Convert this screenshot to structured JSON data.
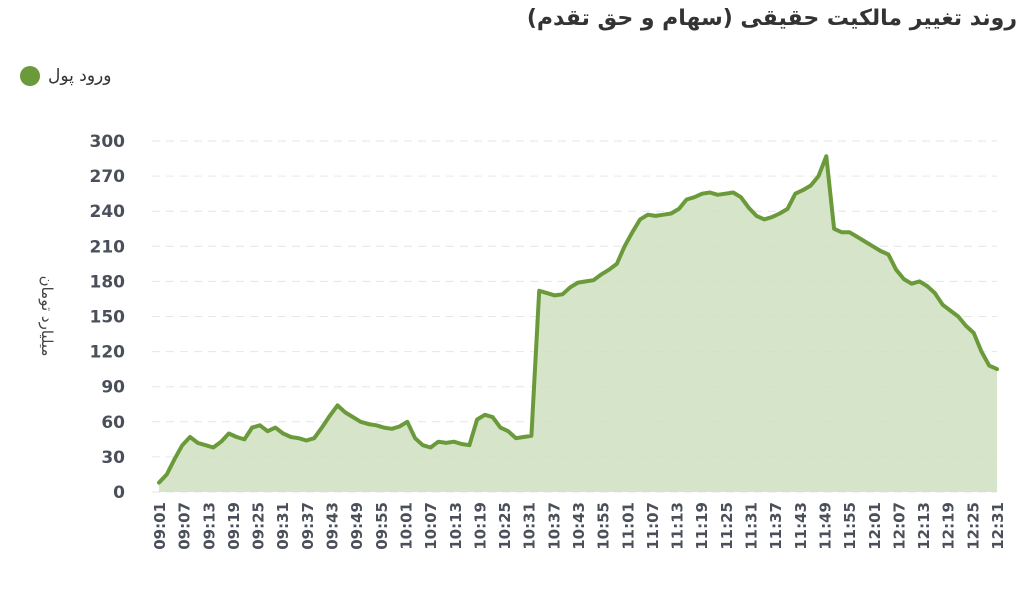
{
  "chart_data": {
    "type": "area",
    "title": "روند تغییر مالکیت حقیقی (سهام و حق تقدم)",
    "ylabel": "میلیارد تومان",
    "xlabel": "",
    "ylim": [
      0,
      300
    ],
    "yticks": [
      0,
      30,
      60,
      90,
      120,
      150,
      180,
      210,
      240,
      270,
      300
    ],
    "grid": true,
    "legend_position": "top-left",
    "colors": {
      "line": "#6a9a3a",
      "fill": "#cfe0bf"
    },
    "x_labels": [
      "09:01",
      "09:07",
      "09:13",
      "09:19",
      "09:25",
      "09:31",
      "09:37",
      "09:43",
      "09:49",
      "09:55",
      "10:01",
      "10:07",
      "10:13",
      "10:19",
      "10:25",
      "10:31",
      "10:37",
      "10:43",
      "10:55",
      "11:01",
      "11:07",
      "11:13",
      "11:19",
      "11:25",
      "11:31",
      "11:37",
      "11:43",
      "11:49",
      "11:55",
      "12:01",
      "12:07",
      "12:13",
      "12:19",
      "12:25",
      "12:31"
    ],
    "series": [
      {
        "name": "ورود پول",
        "values": [
          8,
          15,
          28,
          40,
          47,
          42,
          40,
          38,
          43,
          50,
          47,
          45,
          55,
          57,
          52,
          55,
          50,
          47,
          46,
          44,
          46,
          55,
          65,
          74,
          68,
          64,
          60,
          58,
          57,
          55,
          54,
          56,
          60,
          46,
          40,
          38,
          43,
          42,
          43,
          41,
          40,
          62,
          66,
          64,
          55,
          52,
          46,
          47,
          48,
          172,
          170,
          168,
          169,
          175,
          179,
          180,
          181,
          186,
          190,
          195,
          210,
          222,
          233,
          237,
          236,
          237,
          238,
          242,
          250,
          252,
          255,
          256,
          254,
          255,
          256,
          252,
          243,
          236,
          233,
          235,
          238,
          242,
          255,
          258,
          262,
          270,
          287,
          225,
          222,
          222,
          218,
          214,
          210,
          206,
          203,
          190,
          182,
          178,
          180,
          176,
          170,
          160,
          155,
          150,
          142,
          136,
          120,
          108,
          105
        ]
      }
    ]
  }
}
